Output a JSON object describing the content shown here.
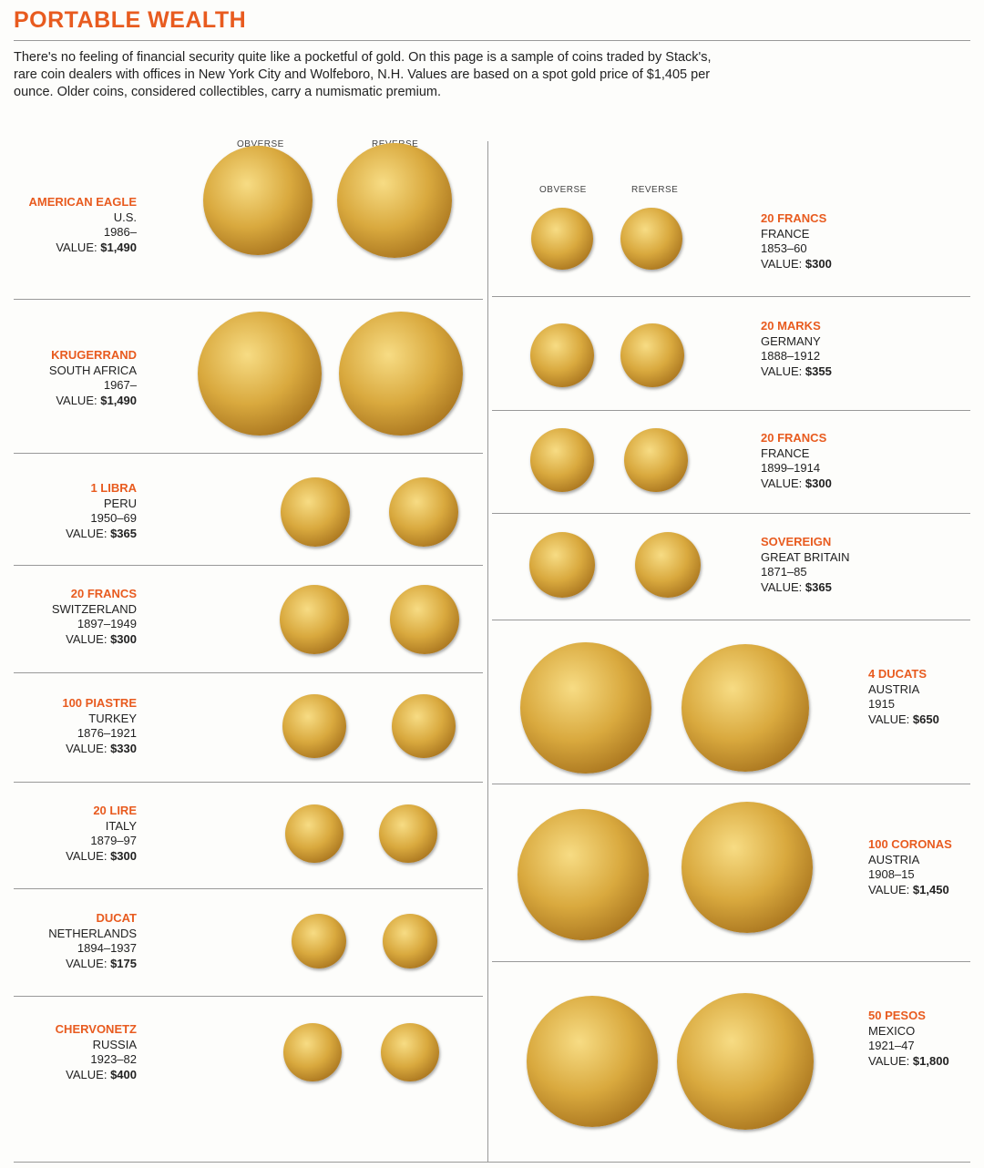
{
  "header": {
    "title": "PORTABLE WEALTH",
    "intro": "There's no feeling of financial security quite like a pocketful of gold. On this page is a sample of coins traded by Stack's, rare coin dealers with offices in New York City and Wolfeboro, N.H. Values are based on a spot gold price of $1,405 per ounce. Older coins, considered collectibles, carry a numismatic premium."
  },
  "labels": {
    "obverse": "OBVERSE",
    "reverse": "REVERSE",
    "value": "VALUE:"
  },
  "coins": [
    {
      "name": "AMERICAN EAGLE",
      "country": "U.S.",
      "years": "1986–",
      "value": "$1,490"
    },
    {
      "name": "KRUGERRAND",
      "country": "SOUTH AFRICA",
      "years": "1967–",
      "value": "$1,490"
    },
    {
      "name": "1 LIBRA",
      "country": "PERU",
      "years": "1950–69",
      "value": "$365"
    },
    {
      "name": "20 FRANCS",
      "country": "SWITZERLAND",
      "years": "1897–1949",
      "value": "$300"
    },
    {
      "name": "100 PIASTRE",
      "country": "TURKEY",
      "years": "1876–1921",
      "value": "$330"
    },
    {
      "name": "20 LIRE",
      "country": "ITALY",
      "years": "1879–97",
      "value": "$300"
    },
    {
      "name": "DUCAT",
      "country": "NETHERLANDS",
      "years": "1894–1937",
      "value": "$175"
    },
    {
      "name": "CHERVONETZ",
      "country": "RUSSIA",
      "years": "1923–82",
      "value": "$400"
    },
    {
      "name": "20 FRANCS",
      "country": "FRANCE",
      "years": "1853–60",
      "value": "$300"
    },
    {
      "name": "20 MARKS",
      "country": "GERMANY",
      "years": "1888–1912",
      "value": "$355"
    },
    {
      "name": "20 FRANCS",
      "country": "FRANCE",
      "years": "1899–1914",
      "value": "$300"
    },
    {
      "name": "SOVEREIGN",
      "country": "GREAT BRITAIN",
      "years": "1871–85",
      "value": "$365"
    },
    {
      "name": "4 DUCATS",
      "country": "AUSTRIA",
      "years": "1915",
      "value": "$650"
    },
    {
      "name": "100 CORONAS",
      "country": "AUSTRIA",
      "years": "1908–15",
      "value": "$1,450"
    },
    {
      "name": "50 PESOS",
      "country": "MEXICO",
      "years": "1921–47",
      "value": "$1,800"
    }
  ]
}
